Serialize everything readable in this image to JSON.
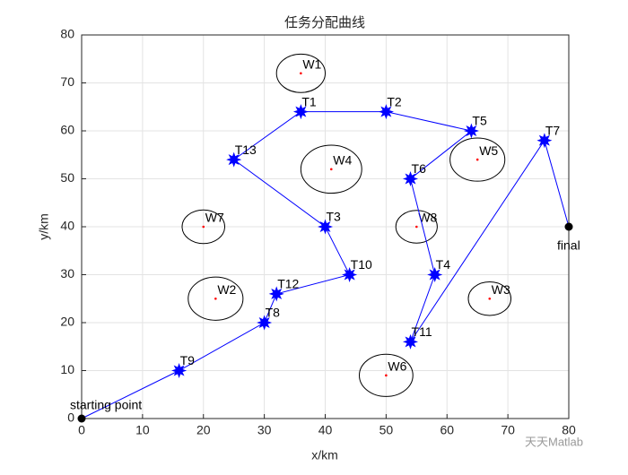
{
  "chart_data": {
    "type": "line",
    "title": "任务分配曲线",
    "xlabel": "x/km",
    "ylabel": "y/km",
    "xlim": [
      0,
      80
    ],
    "ylim": [
      0,
      80
    ],
    "xticks": [
      0,
      10,
      20,
      30,
      40,
      50,
      60,
      70,
      80
    ],
    "yticks": [
      0,
      10,
      20,
      30,
      40,
      50,
      60,
      70,
      80
    ],
    "grid": true,
    "series": [
      {
        "color": "#0000ff",
        "endpoint_color": "#000000",
        "point_labels": [
          "starting point",
          "T9",
          "T8",
          "T12",
          "T10",
          "T3",
          "T13",
          "T1",
          "T2",
          "T5",
          "T6",
          "T4",
          "T11",
          "T7",
          "final"
        ],
        "x": [
          0,
          16,
          30,
          32,
          44,
          40,
          25,
          36,
          50,
          64,
          54,
          58,
          54,
          76,
          80
        ],
        "values": [
          0,
          10,
          20,
          26,
          30,
          40,
          54,
          64,
          64,
          60,
          50,
          30,
          16,
          58,
          40
        ]
      }
    ],
    "regions": {
      "color": "#ff0000",
      "labels": [
        "W1",
        "W4",
        "W5",
        "W7",
        "W8",
        "W2",
        "W3",
        "W6"
      ],
      "x": [
        36,
        41,
        65,
        20,
        55,
        22,
        67,
        50
      ],
      "y": [
        72,
        52,
        54,
        40,
        40,
        25,
        25,
        9
      ],
      "radius": [
        4,
        5,
        4.5,
        3.5,
        3.4,
        4.5,
        3.5,
        4.4
      ]
    },
    "watermark": "天天Matlab"
  }
}
